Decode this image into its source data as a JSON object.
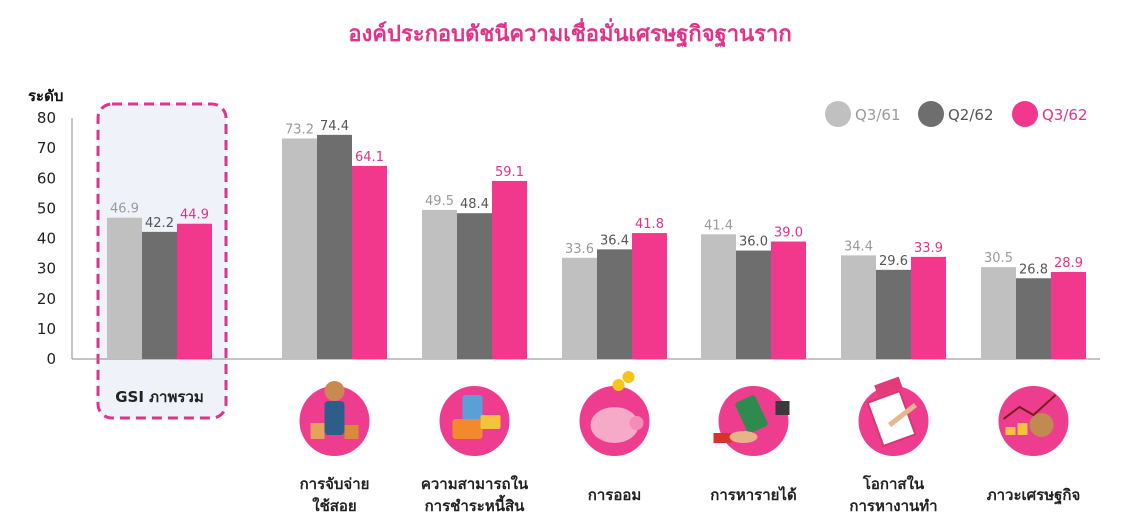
{
  "colors": {
    "accent": "#e0338a",
    "q3_61": "#c0c0c0",
    "q2_62": "#6e6e6e",
    "q3_62": "#f2388c",
    "highlight_bg": "#f0f2fa"
  },
  "chart_data": {
    "type": "bar",
    "title": "องค์ประกอบดัชนีความเชื่อมั่นเศรษฐกิจฐานราก",
    "ylabel": "ระดับ",
    "xlabel": "",
    "ylim": [
      0,
      80
    ],
    "yticks": [
      0,
      10,
      20,
      30,
      40,
      50,
      60,
      70,
      80
    ],
    "grid": false,
    "legend_position": "top-right",
    "categories": [
      [
        "GSI ภาพรวม"
      ],
      [
        "การจับจ่าย",
        "ใช้สอย"
      ],
      [
        "ความสามารถใน",
        "การชำระหนี้สิน"
      ],
      [
        "การออม"
      ],
      [
        "การหารายได้"
      ],
      [
        "โอกาสใน",
        "การหางานทำ"
      ],
      [
        "ภาวะเศรษฐกิจ"
      ]
    ],
    "series": [
      {
        "name": "Q3/61",
        "color": "#c0c0c0",
        "label_color": "#9a9a9a",
        "values": [
          46.9,
          73.2,
          49.5,
          33.6,
          41.4,
          34.4,
          30.5
        ]
      },
      {
        "name": "Q2/62",
        "color": "#6e6e6e",
        "label_color": "#555555",
        "values": [
          42.2,
          74.4,
          48.4,
          36.4,
          36.0,
          29.6,
          26.8
        ]
      },
      {
        "name": "Q3/62",
        "color": "#f2388c",
        "label_color": "#e0338a",
        "values": [
          44.9,
          64.1,
          59.1,
          41.8,
          39.0,
          33.9,
          28.9
        ]
      }
    ],
    "icons": [
      "",
      "shopping-woman-icon",
      "payment-cards-icon",
      "piggy-bank-icon",
      "money-hand-icon",
      "job-application-icon",
      "economy-growth-icon"
    ]
  }
}
